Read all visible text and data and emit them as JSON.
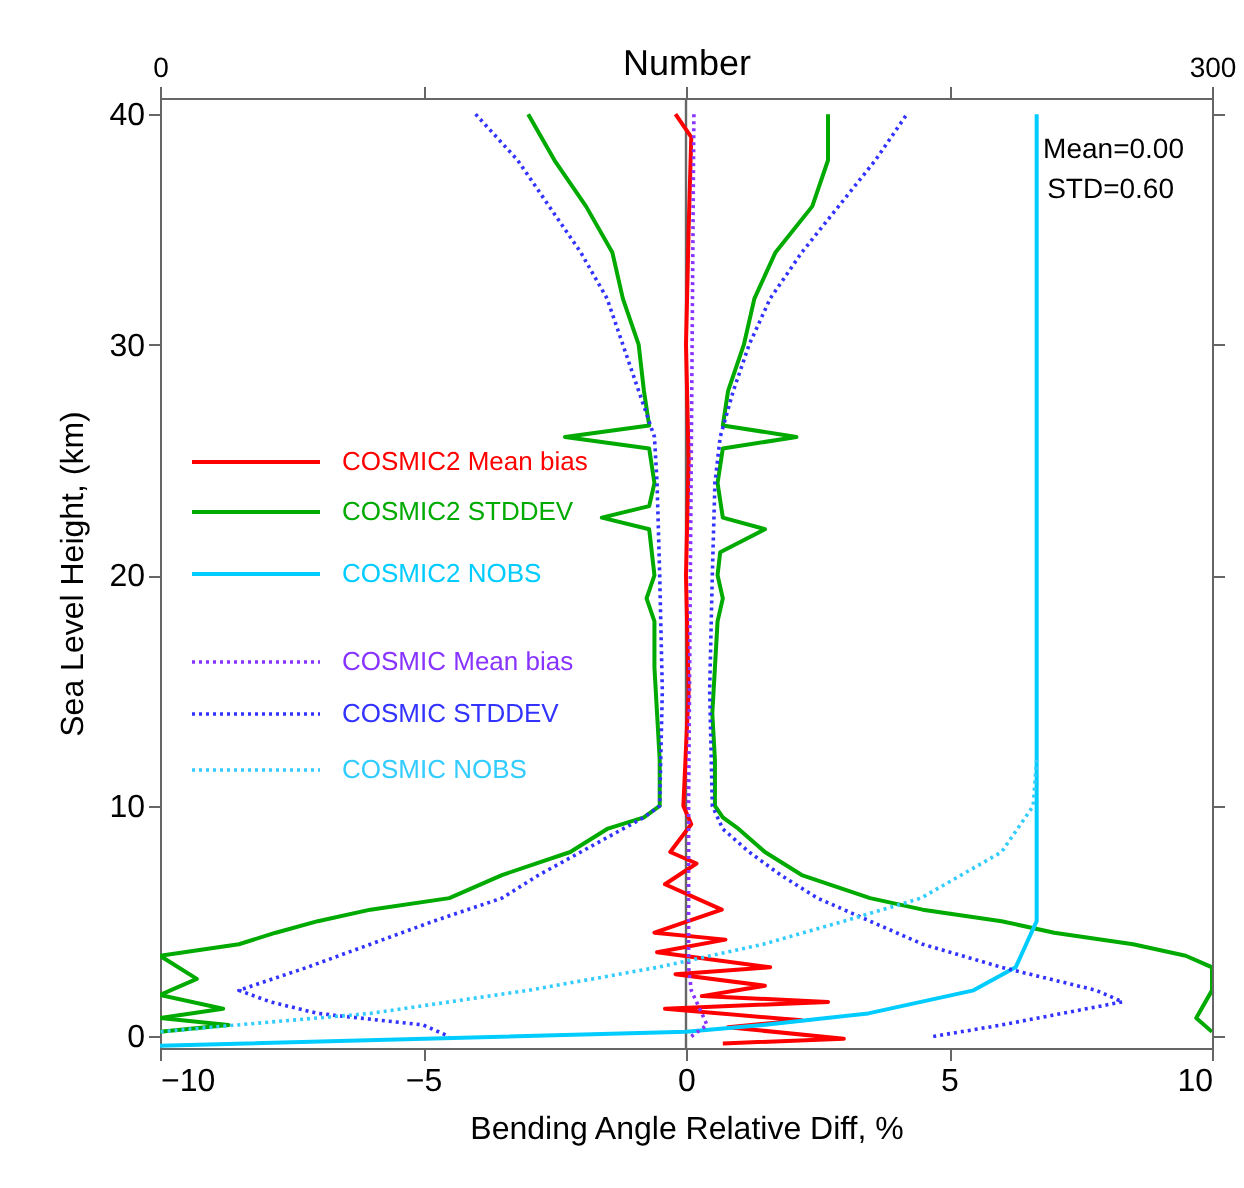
{
  "chart_data": {
    "type": "line",
    "orientation": "horizontal",
    "xlabel": "Bending Angle Relative Diff, %",
    "ylabel": "Sea Level Height, (km)",
    "x2label": "Number",
    "xlim": [
      -10,
      10
    ],
    "xticks": [
      -10,
      -5,
      0,
      5,
      10
    ],
    "ylim": [
      -0.5,
      40.7
    ],
    "yticks": [
      0,
      10,
      20,
      30,
      40
    ],
    "x2lim": [
      0,
      300
    ],
    "x2ticks": [
      0,
      {
        "value": 75,
        "label": null
      },
      {
        "value": 150,
        "label": null
      },
      {
        "value": 225,
        "label": null
      },
      300
    ],
    "legend": "left",
    "grid": false,
    "ref_lines": [
      {
        "axis": "x",
        "value": 0,
        "color": "#666666"
      }
    ],
    "annotations": [
      "Mean=0.00",
      "STD=0.60"
    ],
    "series": [
      {
        "name": "COSMIC2 Mean bias",
        "color": "#ff0000",
        "line_style": "solid",
        "values": [
          -0.2,
          0.1,
          0.05,
          0.0,
          0.05,
          0.0,
          0.05,
          -0.05,
          0.1,
          -0.3,
          0.2,
          -0.4,
          0.68,
          -0.6,
          0.75,
          -0.55,
          1.6,
          -0.2,
          1.5,
          0.3,
          2.7,
          -0.4,
          2.2,
          0.8,
          3.0,
          0.7
        ],
        "x": [
          40,
          39,
          35,
          30,
          25,
          20,
          15,
          10,
          9.2,
          8,
          7.5,
          6.6,
          5.5,
          4.5,
          4.2,
          3.65,
          3.0,
          2.7,
          2.2,
          1.75,
          1.5,
          1.2,
          0.7,
          0.4,
          -0.1,
          -0.3
        ]
      },
      {
        "name": "COSMIC2 STDDEV",
        "color": "#00aa00",
        "line_style": "solid",
        "values": [
          -3.0,
          -2.5,
          -1.9,
          -1.4,
          -1.2,
          -0.9,
          -0.8,
          -0.7,
          -2.3,
          -0.7,
          -0.6,
          -0.7,
          -1.6,
          -0.7,
          -0.6,
          -0.75,
          -0.6,
          -0.6,
          -0.55,
          -0.5,
          -0.5,
          -0.8,
          -1.5,
          -2.2,
          -3.5,
          -4.5,
          -6,
          -7,
          -7.8,
          -8.5,
          -10,
          -9.3,
          -10,
          -8.8,
          -10,
          -8.7,
          -10,
          null,
          10,
          9.7,
          10,
          10,
          9.5,
          8.5,
          7.0,
          6,
          4.5,
          3.5,
          2.2,
          1.5,
          1.0,
          0.7,
          0.55,
          0.55,
          0.5,
          0.55,
          0.6,
          0.7,
          0.6,
          0.65,
          1.5,
          0.7,
          0.6,
          0.7,
          2.1,
          0.7,
          0.8,
          1.1,
          1.3,
          1.7,
          2.4,
          2.7,
          2.7
        ],
        "x": [
          40,
          38,
          36,
          34,
          32,
          30,
          28,
          26.5,
          26,
          25.5,
          24,
          23,
          22.5,
          22,
          20,
          19,
          18,
          16,
          14,
          12,
          10,
          9.5,
          9,
          8,
          7,
          6,
          5.5,
          5,
          4.5,
          4,
          3.5,
          2.5,
          1.8,
          1.2,
          0.8,
          0.5,
          0.2,
          null,
          0.2,
          0.8,
          2,
          3,
          3.5,
          4,
          4.5,
          5,
          5.5,
          6,
          7,
          8,
          9,
          9.5,
          10,
          12,
          14,
          16,
          18,
          19,
          20,
          21,
          22,
          22.5,
          24,
          25.5,
          26,
          26.5,
          28,
          30,
          32,
          34,
          36,
          38,
          40
        ]
      },
      {
        "name": "COSMIC2 NOBS",
        "color": "#00ccff",
        "line_style": "solid",
        "axis": "x2",
        "values": [
          250,
          250,
          250,
          247,
          244,
          232,
          202,
          172,
          150,
          0
        ],
        "x": [
          40,
          12,
          5,
          4,
          3,
          2,
          1,
          0.5,
          0.2,
          -0.4
        ]
      },
      {
        "name": "COSMIC Mean bias",
        "color": "#8833ff",
        "line_style": "dotted",
        "values": [
          0.15,
          0.1,
          0.05,
          0.05,
          0.1,
          0.3,
          0.4,
          0.1
        ],
        "x": [
          40,
          25,
          10,
          3,
          2,
          1,
          0.5,
          0
        ]
      },
      {
        "name": "COSMIC STDDEV",
        "color": "#3333ff",
        "line_style": "dotted",
        "values": [
          -4.0,
          -3.2,
          -2.6,
          -2.0,
          -1.5,
          -1.2,
          -0.9,
          -0.6,
          -0.55,
          -0.5,
          -0.45,
          -0.5,
          -0.8,
          -1.2,
          -2.0,
          -2.8,
          -3.5,
          -4.8,
          -6.0,
          -7.2,
          -8.5,
          -7.9,
          -7.0,
          -5.0,
          -4.5,
          null,
          4.7,
          6,
          8.3,
          7.8,
          6.0,
          4.5,
          3.5,
          2.5,
          1.8,
          1.2,
          0.7,
          0.5,
          0.45,
          0.5,
          0.55,
          0.65,
          0.9,
          1.2,
          1.6,
          2.2,
          2.9,
          3.6,
          4.2
        ],
        "x": [
          40,
          38,
          36,
          34,
          32,
          30,
          28,
          26,
          24,
          20,
          15,
          10,
          9.5,
          9,
          8,
          7,
          6,
          5,
          4,
          3,
          2,
          1.5,
          1,
          0.5,
          0,
          null,
          0,
          0.5,
          1.5,
          2,
          3,
          4,
          5,
          6,
          7,
          8,
          9,
          10,
          15,
          20,
          24,
          26,
          28,
          30,
          32,
          34,
          36,
          38,
          40
        ]
      },
      {
        "name": "COSMIC NOBS",
        "color": "#33ccff",
        "line_style": "dotted",
        "axis": "x2",
        "values": [
          250,
          249,
          240,
          217,
          195,
          172,
          142,
          105,
          60,
          22,
          0
        ],
        "x": [
          12,
          10,
          8,
          6,
          5,
          4,
          3,
          2,
          1,
          0.5,
          0.2
        ]
      }
    ]
  }
}
